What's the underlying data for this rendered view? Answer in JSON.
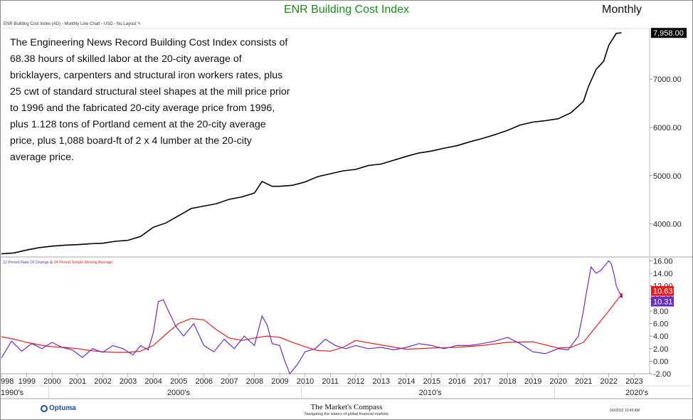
{
  "header": {
    "title": "ENR Building Cost Index",
    "frequency": "Monthly",
    "subtitle": "ENR Building Cost Index (AD) - Monthly Line Chart - USD - No Layout ✎"
  },
  "description": "The Engineering News Record Building Cost Index consists of 68.38 hours of skilled labor at the 20-city average of bricklayers, carpenters and structural iron workers rates, plus 25 cwt of standard structural steel shapes at the mill price prior to 1996 and the fabricated 20-city average price from 1996, plus 1.128 tons of Portland cement at the 20-city average price, plus 1,088 board-ft of 2 x 4 lumber at the 20-city average price.",
  "indicator_label": {
    "roc": "12 Period Rate Of Change",
    "amp": "&",
    "sma": "24 Period Simple Moving Average"
  },
  "footer": {
    "logo": "Optuma",
    "brand": "The Market's Compass",
    "tagline": "Navigating the waters of global financial markets",
    "timestamp": "9/9/2022 10:46 AM"
  },
  "colors": {
    "price_line": "#000000",
    "roc_line": "#6a2cc0",
    "sma_line": "#e02020",
    "last_tag": "#000000"
  },
  "chart_data": [
    {
      "type": "line",
      "title": "ENR Building Cost Index",
      "ylabel": "",
      "ylim": [
        3330,
        8050
      ],
      "y_ticks": [
        "4000.00",
        "5000.00",
        "6000.00",
        "7000.00"
      ],
      "last_value_label": "7,958.00",
      "x_ticks": [
        "998",
        "1999",
        "2000",
        "2001",
        "2002",
        "2003",
        "2004",
        "2005",
        "2006",
        "2007",
        "2008",
        "2009",
        "2010",
        "2011",
        "2012",
        "2013",
        "2014",
        "2015",
        "2016",
        "2017",
        "2018",
        "2019",
        "2020",
        "2021",
        "2022",
        "2023"
      ],
      "decade_labels": [
        "1990's",
        "2000's",
        "2010's",
        "2020's"
      ],
      "series": [
        {
          "name": "ENR Building Cost Index",
          "x": [
            1998.0,
            1998.5,
            1999.0,
            1999.5,
            2000.0,
            2000.5,
            2001.0,
            2001.5,
            2002.0,
            2002.5,
            2003.0,
            2003.5,
            2004.0,
            2004.5,
            2005.0,
            2005.5,
            2006.0,
            2006.5,
            2007.0,
            2007.5,
            2008.0,
            2008.3,
            2008.7,
            2009.0,
            2009.5,
            2010.0,
            2010.5,
            2011.0,
            2011.5,
            2012.0,
            2012.5,
            2013.0,
            2013.5,
            2014.0,
            2014.5,
            2015.0,
            2015.5,
            2016.0,
            2016.5,
            2017.0,
            2017.5,
            2018.0,
            2018.5,
            2019.0,
            2019.5,
            2020.0,
            2020.5,
            2021.0,
            2021.2,
            2021.5,
            2021.8,
            2022.0,
            2022.3,
            2022.5
          ],
          "values": [
            3380,
            3400,
            3460,
            3510,
            3540,
            3560,
            3570,
            3590,
            3600,
            3640,
            3660,
            3740,
            3930,
            4020,
            4170,
            4320,
            4370,
            4420,
            4510,
            4560,
            4640,
            4880,
            4780,
            4780,
            4800,
            4870,
            4980,
            5040,
            5100,
            5130,
            5210,
            5240,
            5320,
            5400,
            5470,
            5510,
            5570,
            5620,
            5700,
            5770,
            5850,
            5940,
            6050,
            6110,
            6140,
            6180,
            6300,
            6540,
            6850,
            7200,
            7370,
            7700,
            7950,
            7958
          ]
        }
      ]
    },
    {
      "type": "line",
      "title": "12 Period Rate Of Change & 24 Period Simple Moving Average",
      "ylim": [
        -2.0,
        16.5
      ],
      "y_ticks": [
        "-2.00",
        "0.00",
        "2.00",
        "4.00",
        "6.00",
        "8.00",
        "10.00",
        "12.00",
        "14.00",
        "16.00"
      ],
      "last_value_labels": [
        "10.63",
        "10.31"
      ],
      "series": [
        {
          "name": "12 Period Rate Of Change",
          "x": [
            1998.0,
            1998.4,
            1998.8,
            1999.2,
            1999.6,
            2000.0,
            2000.4,
            2000.8,
            2001.2,
            2001.6,
            2002.0,
            2002.4,
            2002.8,
            2003.2,
            2003.5,
            2003.8,
            2004.0,
            2004.2,
            2004.4,
            2004.6,
            2004.9,
            2005.2,
            2005.6,
            2006.0,
            2006.4,
            2006.8,
            2007.2,
            2007.6,
            2008.0,
            2008.3,
            2008.5,
            2008.7,
            2009.0,
            2009.2,
            2009.4,
            2009.7,
            2010.0,
            2010.4,
            2010.8,
            2011.2,
            2011.6,
            2012.0,
            2012.5,
            2013.0,
            2013.5,
            2014.0,
            2014.5,
            2015.0,
            2015.5,
            2016.0,
            2016.5,
            2017.0,
            2017.5,
            2018.0,
            2018.5,
            2019.0,
            2019.5,
            2020.0,
            2020.4,
            2020.8,
            2021.0,
            2021.1,
            2021.3,
            2021.5,
            2021.7,
            2021.9,
            2022.0,
            2022.1,
            2022.2,
            2022.3,
            2022.5
          ],
          "values": [
            0.5,
            3.2,
            1.6,
            2.8,
            2.0,
            3.0,
            2.2,
            1.8,
            0.6,
            2.0,
            1.4,
            2.5,
            2.0,
            1.0,
            2.5,
            1.8,
            4.5,
            9.5,
            9.8,
            8.0,
            5.5,
            4.0,
            6.0,
            2.5,
            1.5,
            3.5,
            2.0,
            4.0,
            2.5,
            7.2,
            5.8,
            2.8,
            2.5,
            0.0,
            -2.0,
            -0.5,
            1.5,
            2.0,
            3.5,
            2.5,
            2.0,
            2.5,
            2.0,
            2.2,
            1.8,
            2.2,
            2.8,
            2.5,
            2.0,
            2.5,
            2.5,
            2.8,
            3.2,
            3.8,
            2.8,
            1.5,
            1.2,
            2.0,
            1.8,
            4.0,
            8.0,
            10.5,
            15.0,
            14.0,
            14.5,
            15.5,
            16.0,
            15.5,
            14.0,
            12.0,
            10.31
          ]
        },
        {
          "name": "24 Period Simple Moving Average",
          "x": [
            1998.0,
            1998.5,
            1999.0,
            1999.5,
            2000.0,
            2000.5,
            2001.0,
            2001.5,
            2002.0,
            2002.5,
            2003.0,
            2003.5,
            2004.0,
            2004.5,
            2005.0,
            2005.5,
            2006.0,
            2006.5,
            2007.0,
            2007.5,
            2008.0,
            2008.5,
            2009.0,
            2009.5,
            2010.0,
            2010.5,
            2011.0,
            2011.5,
            2012.0,
            2013.0,
            2014.0,
            2015.0,
            2016.0,
            2017.0,
            2018.0,
            2019.0,
            2019.5,
            2020.0,
            2020.5,
            2021.0,
            2021.5,
            2022.0,
            2022.5
          ],
          "values": [
            3.9,
            3.5,
            3.0,
            2.6,
            2.3,
            2.2,
            2.0,
            1.7,
            1.5,
            1.4,
            1.4,
            1.6,
            2.5,
            4.3,
            6.0,
            6.8,
            6.6,
            5.0,
            3.7,
            3.3,
            3.7,
            4.0,
            3.8,
            3.0,
            2.3,
            1.7,
            1.6,
            2.2,
            3.3,
            2.6,
            1.9,
            2.1,
            2.2,
            2.5,
            3.0,
            3.1,
            2.6,
            2.1,
            2.2,
            3.0,
            5.5,
            8.0,
            10.63
          ]
        }
      ]
    }
  ]
}
